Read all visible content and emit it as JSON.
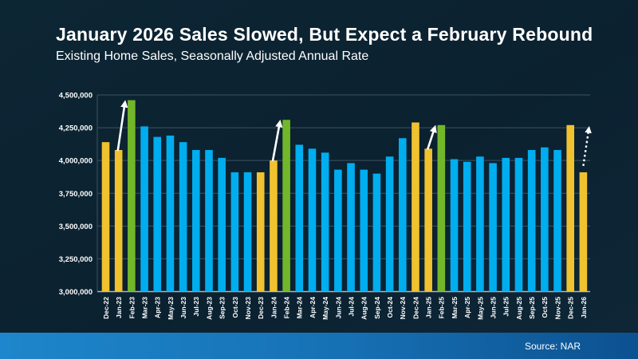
{
  "slide": {
    "title": "January 2026 Sales Slowed, But Expect a February Rebound",
    "subtitle": "Existing Home Sales, Seasonally Adjusted Annual Rate",
    "source": "Source: NAR"
  },
  "palette": {
    "background": "#0C2231",
    "bar_blue": "#00ADEF",
    "bar_gold": "#F0C22F",
    "bar_green": "#72B72A",
    "gridline": "#3F5260",
    "axis_line": "#A9B6BE",
    "text": "#FFFFFF",
    "arrow": "#FFFFFF",
    "footer_left": "#1E86CC",
    "footer_right": "#0C5190"
  },
  "chart_data": {
    "type": "bar",
    "title": "January 2026 Sales Slowed, But Expect a February Rebound",
    "subtitle": "Existing Home Sales, Seasonally Adjusted Annual Rate",
    "source": "Source: NAR",
    "categories": [
      "Dec-22",
      "Jan-23",
      "Feb-23",
      "Mar-23",
      "Apr-23",
      "May-23",
      "Jun-23",
      "Jul-23",
      "Aug-23",
      "Sep-23",
      "Oct-23",
      "Nov-23",
      "Dec-23",
      "Jan-24",
      "Feb-24",
      "Mar-24",
      "Apr-24",
      "May-24",
      "Jun-24",
      "Jul-24",
      "Aug-24",
      "Sep-24",
      "Oct-24",
      "Nov-24",
      "Dec-24",
      "Jan-25",
      "Feb-25",
      "Mar-25",
      "Apr-25",
      "May-25",
      "Jun-25",
      "Jul-25",
      "Aug-25",
      "Sep-25",
      "Oct-25",
      "Nov-25",
      "Dec-25",
      "Jan-26"
    ],
    "values": [
      4140000,
      4080000,
      4460000,
      4260000,
      4180000,
      4190000,
      4140000,
      4080000,
      4080000,
      4020000,
      3910000,
      3910000,
      3910000,
      4000000,
      4310000,
      4120000,
      4090000,
      4060000,
      3930000,
      3980000,
      3930000,
      3900000,
      4030000,
      4170000,
      4290000,
      4090000,
      4270000,
      4010000,
      3990000,
      4030000,
      3980000,
      4020000,
      4020000,
      4080000,
      4100000,
      4080000,
      4270000,
      3910000
    ],
    "bar_colors": [
      "gold",
      "gold",
      "green",
      "blue",
      "blue",
      "blue",
      "blue",
      "blue",
      "blue",
      "blue",
      "blue",
      "blue",
      "gold",
      "gold",
      "green",
      "blue",
      "blue",
      "blue",
      "blue",
      "blue",
      "blue",
      "blue",
      "blue",
      "blue",
      "gold",
      "gold",
      "green",
      "blue",
      "blue",
      "blue",
      "blue",
      "blue",
      "blue",
      "blue",
      "blue",
      "blue",
      "gold",
      "gold"
    ],
    "ylim": [
      3000000,
      4500000
    ],
    "y_tick_step": 250000,
    "y_tick_labels": [
      "4,500,000",
      "4,250,000",
      "4,000,000",
      "3,750,000",
      "3,500,000",
      "3,250,000",
      "3,000,000"
    ],
    "grid": true,
    "legend": false,
    "annotations": [
      {
        "type": "arrow",
        "style": "solid",
        "from": "Jan-23",
        "to": "Feb-23",
        "direction": "up"
      },
      {
        "type": "arrow",
        "style": "solid",
        "from": "Jan-24",
        "to": "Feb-24",
        "direction": "up"
      },
      {
        "type": "arrow",
        "style": "solid",
        "from": "Jan-25",
        "to": "Feb-25",
        "direction": "up"
      },
      {
        "type": "arrow",
        "style": "dashed",
        "from": "Jan-26",
        "to": null,
        "direction": "up"
      }
    ]
  }
}
